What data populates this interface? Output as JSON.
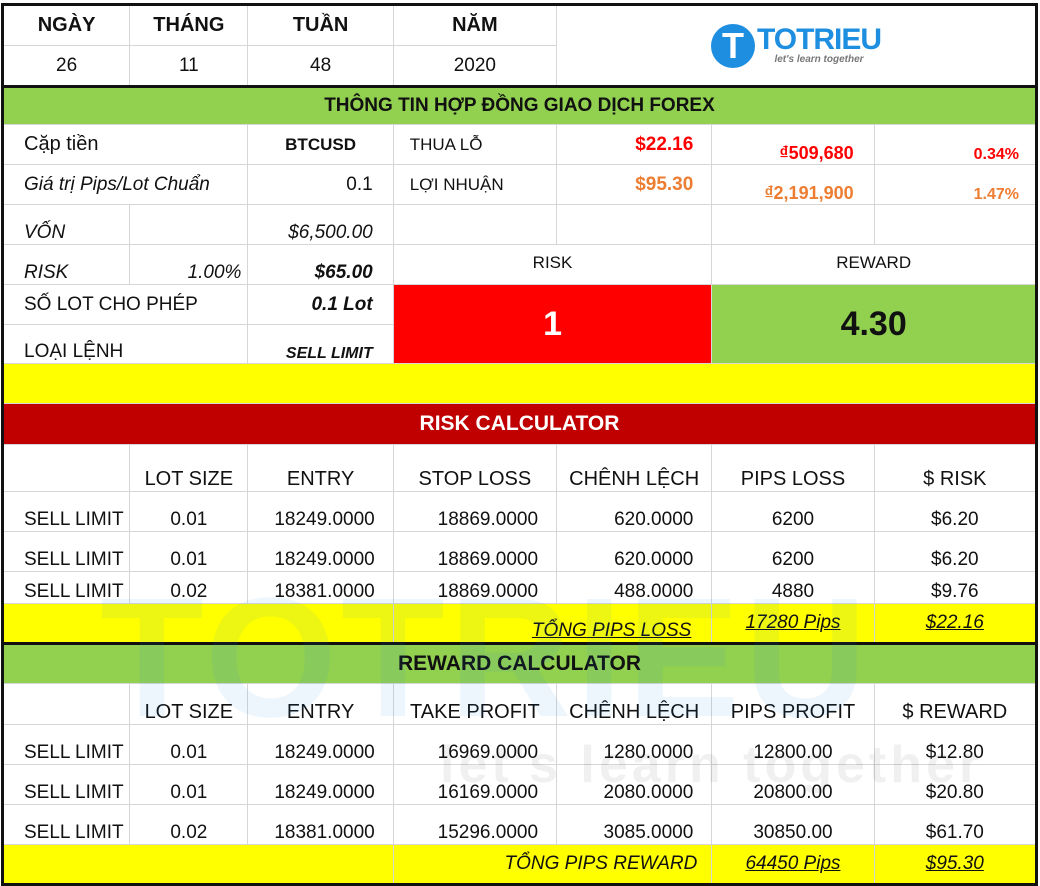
{
  "date_header": {
    "labels": [
      "NGÀY",
      "THÁNG",
      "TUẦN",
      "NĂM"
    ],
    "values": [
      "26",
      "11",
      "48",
      "2020"
    ]
  },
  "logo": {
    "name": "TOTRIEU",
    "tagline": "let's learn together"
  },
  "contract": {
    "title": "THÔNG TIN HỢP ĐỒNG GIAO DỊCH FOREX",
    "pair_label": "Cặp tiền",
    "pair_value": "BTCUSD",
    "pip_label": "Giá trị Pips/Lot Chuẩn",
    "pip_value": "0.1",
    "loss_label": "THUA LỖ",
    "loss_usd": "$22.16",
    "loss_vnd": "₫509,680",
    "loss_pct": "0.34%",
    "profit_label": "LỢI NHUẬN",
    "profit_usd": "$95.30",
    "profit_vnd": "₫2,191,900",
    "profit_pct": "1.47%",
    "capital_label": "VỐN",
    "capital_value": "$6,500.00",
    "risk_label": "RISK",
    "risk_pct": "1.00%",
    "risk_value": "$65.00",
    "lot_label": "SỐ LOT CHO PHÉP",
    "lot_value": "0.1 Lot",
    "order_label": "LOẠI LỆNH",
    "order_value": "SELL LIMIT",
    "rr_risk_label": "RISK",
    "rr_reward_label": "REWARD",
    "rr_risk_value": "1",
    "rr_reward_value": "4.30"
  },
  "colors": {
    "loss": "#ff0000",
    "profit": "#ed7d31",
    "green": "#92d050",
    "yellow": "#ffff00",
    "red": "#ff0000",
    "dark_red": "#c00000"
  },
  "risk_calc": {
    "title": "RISK CALCULATOR",
    "headers": [
      "",
      "LOT SIZE",
      "ENTRY",
      "STOP LOSS",
      "CHÊNH LỆCH",
      "PIPS LOSS",
      "$ RISK"
    ],
    "rows": [
      [
        "SELL LIMIT",
        "0.01",
        "18249.0000",
        "18869.0000",
        "620.0000",
        "6200",
        "$6.20"
      ],
      [
        "SELL LIMIT",
        "0.01",
        "18249.0000",
        "18869.0000",
        "620.0000",
        "6200",
        "$6.20"
      ],
      [
        "SELL LIMIT",
        "0.02",
        "18381.0000",
        "18869.0000",
        "488.0000",
        "4880",
        "$9.76"
      ]
    ],
    "total_label": "TỔNG PIPS LOSS",
    "total_pips": "17280 Pips",
    "total_usd": "$22.16"
  },
  "reward_calc": {
    "title": "REWARD CALCULATOR",
    "headers": [
      "",
      "LOT SIZE",
      "ENTRY",
      "TAKE PROFIT",
      "CHÊNH LỆCH",
      "PIPS PROFIT",
      "$ REWARD"
    ],
    "rows": [
      [
        "SELL LIMIT",
        "0.01",
        "18249.0000",
        "16969.0000",
        "1280.0000",
        "12800.00",
        "$12.80"
      ],
      [
        "SELL LIMIT",
        "0.01",
        "18249.0000",
        "16169.0000",
        "2080.0000",
        "20800.00",
        "$20.80"
      ],
      [
        "SELL LIMIT",
        "0.02",
        "18381.0000",
        "15296.0000",
        "3085.0000",
        "30850.00",
        "$61.70"
      ]
    ],
    "total_label": "TỔNG PIPS REWARD",
    "total_pips": "64450 Pips",
    "total_usd": "$95.30"
  }
}
